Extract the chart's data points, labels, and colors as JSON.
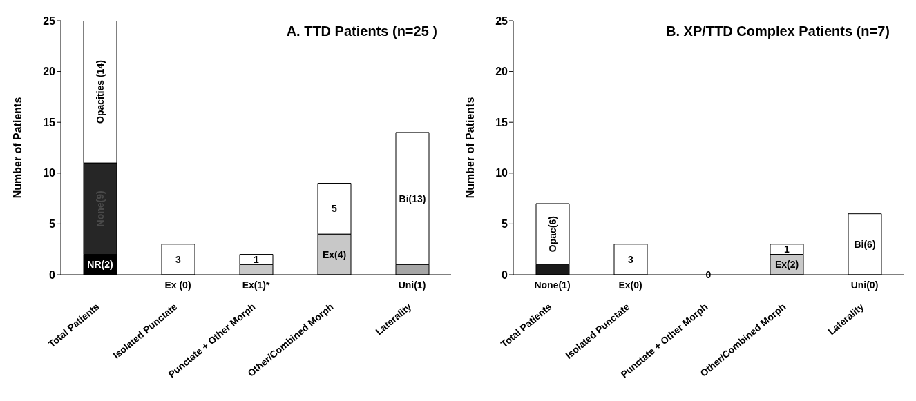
{
  "chart_data": [
    {
      "type": "bar",
      "title": "A. TTD Patients (n=25 )",
      "ylabel": "Number of Patients",
      "stacked": true,
      "categories": [
        "Total Patients",
        "Isolated Punctate",
        "Punctate + Other Morph",
        "Other/Combined Morph",
        "Laterality"
      ],
      "series": [
        {
          "color": "#000000",
          "values": [
            2,
            0,
            0,
            0,
            0
          ],
          "value_labels": [
            "NR(2)",
            null,
            null,
            null,
            null
          ]
        },
        {
          "color": "#262626",
          "values": [
            9,
            0,
            0,
            0,
            0
          ],
          "value_labels": [
            "None(9)",
            null,
            null,
            null,
            null
          ]
        },
        {
          "color": "#c8c8c8",
          "values": [
            0,
            0,
            1,
            4,
            0
          ],
          "value_labels": [
            null,
            null,
            null,
            "Ex(4)",
            null
          ]
        },
        {
          "color": "#a6a6a6",
          "values": [
            0,
            0,
            0,
            0,
            1
          ],
          "value_labels": [
            null,
            null,
            null,
            null,
            null
          ]
        },
        {
          "color": "#ffffff",
          "values": [
            14,
            3,
            1,
            5,
            13
          ],
          "value_labels": [
            "Opacities (14)",
            "3",
            "1",
            "5",
            "Bi(13)"
          ]
        }
      ],
      "annotations": [
        {
          "text": "Ex (0)",
          "x": "Isolated Punctate",
          "y": 0
        },
        {
          "text": "Ex(1)*",
          "x": "Punctate + Other Morph",
          "y": 0
        },
        {
          "text": "Uni(1)",
          "x": "Laterality",
          "y": 0
        }
      ],
      "ylim": [
        0,
        25
      ],
      "yticks": [
        0,
        5,
        10,
        15,
        20,
        25
      ],
      "grid": false,
      "legend": false
    },
    {
      "type": "bar",
      "title": "B. XP/TTD Complex Patients (n=7)",
      "ylabel": "Number of Patients",
      "stacked": true,
      "categories": [
        "Total Patients",
        "Isolated Punctate",
        "Punctate + Other Morph",
        "Other/Combined Morph",
        "Laterality"
      ],
      "series": [
        {
          "color": "#1a1a1a",
          "values": [
            1,
            0,
            0,
            0,
            0
          ],
          "value_labels": [
            null,
            null,
            null,
            null,
            null
          ]
        },
        {
          "color": "#c8c8c8",
          "values": [
            0,
            0,
            0,
            2,
            0
          ],
          "value_labels": [
            null,
            null,
            null,
            "Ex(2)",
            null
          ]
        },
        {
          "color": "#ffffff",
          "values": [
            6,
            3,
            0,
            1,
            6
          ],
          "value_labels": [
            "Opac(6)",
            "3",
            "0",
            "1",
            "Bi(6)"
          ]
        }
      ],
      "annotations": [
        {
          "text": "None(1)",
          "x": "Total Patients",
          "y": 0
        },
        {
          "text": "Ex(0)",
          "x": "Isolated Punctate",
          "y": 0
        },
        {
          "text": "Uni(0)",
          "x": "Laterality",
          "y": 0
        }
      ],
      "ylim": [
        0,
        25
      ],
      "yticks": [
        0,
        5,
        10,
        15,
        20,
        25
      ],
      "grid": false,
      "legend": false
    }
  ]
}
